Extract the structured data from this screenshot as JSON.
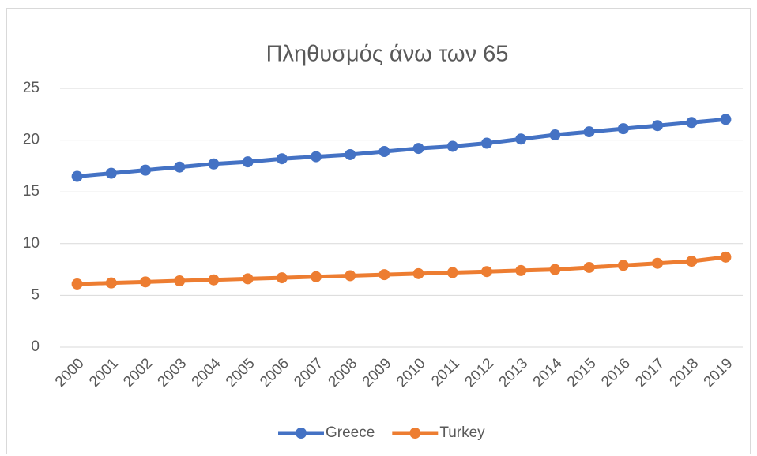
{
  "chart_data": {
    "type": "line",
    "title": "Πληθυσμός άνω των 65",
    "categories": [
      "2000",
      "2001",
      "2002",
      "2003",
      "2004",
      "2005",
      "2006",
      "2007",
      "2008",
      "2009",
      "2010",
      "2011",
      "2012",
      "2013",
      "2014",
      "2015",
      "2016",
      "2017",
      "2018",
      "2019"
    ],
    "series": [
      {
        "name": "Greece",
        "color": "#4472c4",
        "values": [
          16.5,
          16.8,
          17.1,
          17.4,
          17.7,
          17.9,
          18.2,
          18.4,
          18.6,
          18.9,
          19.2,
          19.4,
          19.7,
          20.1,
          20.5,
          20.8,
          21.1,
          21.4,
          21.7,
          22.0
        ]
      },
      {
        "name": "Turkey",
        "color": "#ed7d31",
        "values": [
          6.1,
          6.2,
          6.3,
          6.4,
          6.5,
          6.6,
          6.7,
          6.8,
          6.9,
          7.0,
          7.1,
          7.2,
          7.3,
          7.4,
          7.5,
          7.7,
          7.9,
          8.1,
          8.3,
          8.7
        ]
      }
    ],
    "ylim": [
      0,
      25
    ],
    "yticks": [
      0,
      5,
      10,
      15,
      20,
      25
    ],
    "grid": true,
    "legend": "bottom"
  }
}
